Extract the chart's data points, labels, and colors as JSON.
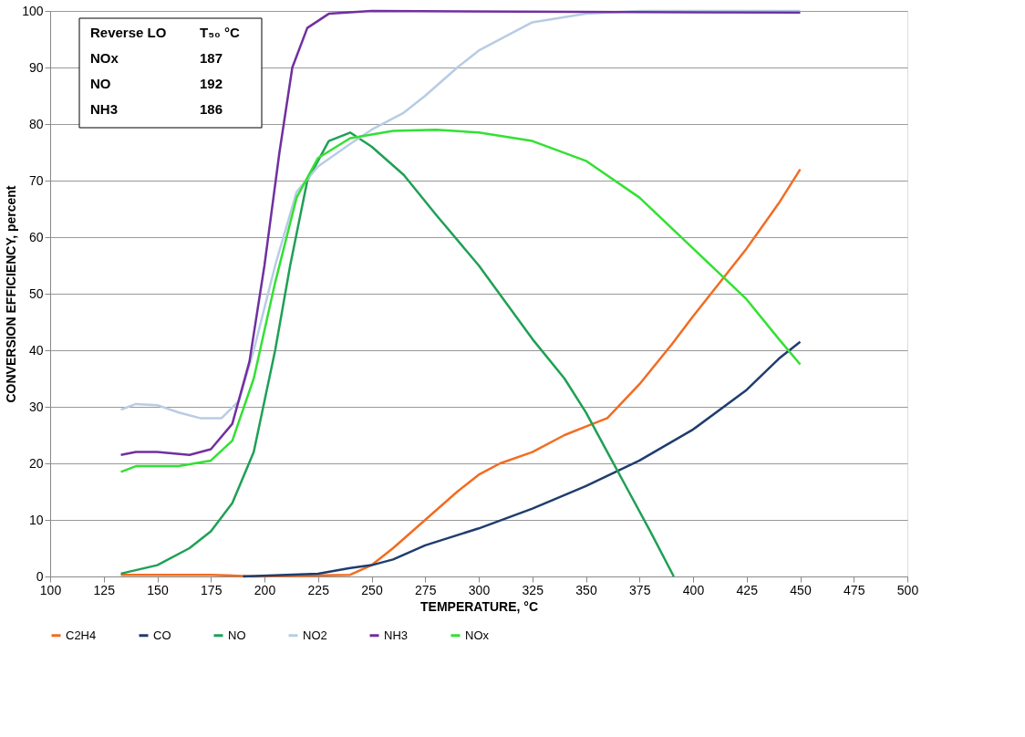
{
  "chart_data": {
    "type": "line",
    "xlabel": "TEMPERATURE, °C",
    "ylabel": "CONVERSION EFFICIENCY, percent",
    "xlim": [
      100,
      500
    ],
    "xticks": [
      100,
      125,
      150,
      175,
      200,
      225,
      250,
      275,
      300,
      325,
      350,
      375,
      400,
      425,
      450,
      475,
      500
    ],
    "ylim": [
      0,
      100
    ],
    "yticks": [
      0,
      10,
      20,
      30,
      40,
      50,
      60,
      70,
      80,
      90,
      100
    ],
    "grid": "y",
    "legend": "bottom",
    "marker": "none",
    "line_style": "solid",
    "annotations": [
      "Reverse LO",
      "T₅₀ °C",
      "NOx",
      "187",
      "NO",
      "192",
      "NH3",
      "186"
    ],
    "series": [
      {
        "name": "C2H4",
        "color": "#f26c21",
        "x": [
          133,
          150,
          175,
          195,
          240,
          250,
          260,
          275,
          290,
          300,
          310,
          325,
          340,
          350,
          360,
          375,
          390,
          400,
          425,
          440,
          450
        ],
        "values": [
          0.3,
          0.3,
          0.3,
          0,
          0.3,
          2,
          5,
          10,
          15,
          18,
          20,
          22,
          25,
          26.5,
          28,
          34,
          41,
          46,
          58,
          66,
          72
        ]
      },
      {
        "name": "CO",
        "color": "#1f3d6e",
        "x": [
          190,
          225,
          240,
          250,
          260,
          275,
          300,
          325,
          350,
          375,
          400,
          425,
          440,
          450
        ],
        "values": [
          0,
          0.5,
          1.5,
          2,
          3,
          5.5,
          8.5,
          12,
          16,
          20.5,
          26,
          33,
          38.5,
          41.5
        ]
      },
      {
        "name": "NO",
        "color": "#1fa055",
        "x": [
          133,
          150,
          165,
          175,
          185,
          195,
          205,
          212,
          220,
          230,
          240,
          250,
          265,
          280,
          300,
          325,
          340,
          350,
          360,
          370,
          380,
          391
        ],
        "values": [
          0.5,
          2,
          5,
          8,
          13,
          22,
          40,
          55,
          70,
          77,
          78.5,
          76,
          71,
          64,
          55,
          42,
          35,
          29,
          22,
          15,
          8,
          0
        ]
      },
      {
        "name": "NO2",
        "color": "#b8cce4",
        "x": [
          133,
          140,
          150,
          160,
          170,
          180,
          188,
          195,
          205,
          215,
          225,
          240,
          250,
          265,
          275,
          290,
          300,
          325,
          350,
          375,
          450
        ],
        "values": [
          29.5,
          30.5,
          30.3,
          29,
          28,
          28,
          31,
          40,
          55,
          68,
          72.5,
          76.5,
          79,
          82,
          85,
          90,
          93,
          98,
          99.5,
          100,
          100
        ]
      },
      {
        "name": "NH3",
        "color": "#7030a0",
        "x": [
          133,
          140,
          150,
          165,
          175,
          185,
          193,
          200,
          207,
          213,
          220,
          230,
          250,
          450
        ],
        "values": [
          21.5,
          22,
          22,
          21.5,
          22.5,
          27,
          38,
          55,
          75,
          90,
          97,
          99.5,
          100,
          99.7
        ]
      },
      {
        "name": "NOx",
        "color": "#33e033",
        "x": [
          133,
          140,
          160,
          175,
          185,
          195,
          205,
          215,
          225,
          240,
          260,
          280,
          300,
          325,
          350,
          375,
          400,
          425,
          440,
          450
        ],
        "values": [
          18.5,
          19.5,
          19.5,
          20.5,
          24,
          35,
          52,
          67,
          74,
          77.5,
          78.8,
          79,
          78.5,
          77,
          73.5,
          67,
          58,
          49,
          42,
          37.5
        ]
      }
    ]
  }
}
